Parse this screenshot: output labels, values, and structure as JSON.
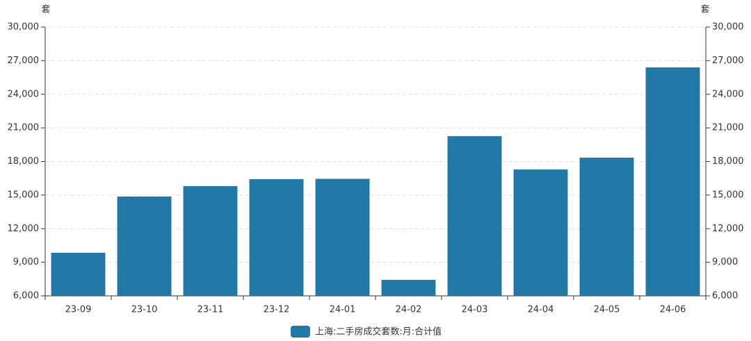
{
  "chart_data": {
    "type": "bar",
    "y_unit": "套",
    "y2_unit": "套",
    "categories": [
      "23-09",
      "23-10",
      "23-11",
      "23-12",
      "24-01",
      "24-02",
      "24-03",
      "24-04",
      "24-05",
      "24-06"
    ],
    "series": [
      {
        "name": "上海:二手房成交套数:月:合计值",
        "color": "#2278a6",
        "values": [
          9850,
          14870,
          15800,
          16420,
          16450,
          7430,
          20260,
          17290,
          18340,
          26400
        ]
      }
    ],
    "ylim": [
      6000,
      30000
    ],
    "yticks": [
      {
        "value": 6000,
        "label": "6,000"
      },
      {
        "value": 9000,
        "label": "9,000"
      },
      {
        "value": 12000,
        "label": "12,000"
      },
      {
        "value": 15000,
        "label": "15,000"
      },
      {
        "value": 18000,
        "label": "18,000"
      },
      {
        "value": 21000,
        "label": "21,000"
      },
      {
        "value": 24000,
        "label": "24,000"
      },
      {
        "value": 27000,
        "label": "27,000"
      },
      {
        "value": 30000,
        "label": "30,000"
      }
    ],
    "y2lim": [
      6000,
      30000
    ],
    "y2ticks": [
      {
        "value": 6000,
        "label": "6,000"
      },
      {
        "value": 9000,
        "label": "9,000"
      },
      {
        "value": 12000,
        "label": "12,000"
      },
      {
        "value": 15000,
        "label": "15,000"
      },
      {
        "value": 18000,
        "label": "18,000"
      },
      {
        "value": 21000,
        "label": "21,000"
      },
      {
        "value": 24000,
        "label": "24,000"
      },
      {
        "value": 27000,
        "label": "27,000"
      },
      {
        "value": 30000,
        "label": "30,000"
      }
    ],
    "grid": true,
    "legend": "bottom"
  }
}
